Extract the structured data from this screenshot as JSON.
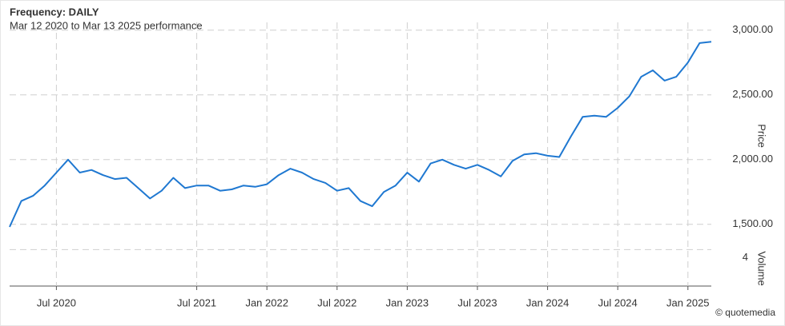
{
  "chart_data": {
    "type": "line",
    "title": "Frequency: DAILY",
    "subtitle": "Mar 12 2020 to Mar 13 2025 performance",
    "y_label": "Price",
    "credit": "© quotemedia",
    "grid": true,
    "x": [
      "2020-03",
      "2020-04",
      "2020-05",
      "2020-06",
      "2020-07",
      "2020-08",
      "2020-09",
      "2020-10",
      "2020-11",
      "2020-12",
      "2021-01",
      "2021-02",
      "2021-03",
      "2021-04",
      "2021-05",
      "2021-06",
      "2021-07",
      "2021-08",
      "2021-09",
      "2021-10",
      "2021-11",
      "2021-12",
      "2022-01",
      "2022-02",
      "2022-03",
      "2022-04",
      "2022-05",
      "2022-06",
      "2022-07",
      "2022-08",
      "2022-09",
      "2022-10",
      "2022-11",
      "2022-12",
      "2023-01",
      "2023-02",
      "2023-03",
      "2023-04",
      "2023-05",
      "2023-06",
      "2023-07",
      "2023-08",
      "2023-09",
      "2023-10",
      "2023-11",
      "2023-12",
      "2024-01",
      "2024-02",
      "2024-03",
      "2024-04",
      "2024-05",
      "2024-06",
      "2024-07",
      "2024-08",
      "2024-09",
      "2024-10",
      "2024-11",
      "2024-12",
      "2025-01",
      "2025-02",
      "2025-03"
    ],
    "series": [
      {
        "name": "Price",
        "color": "#1f78d1",
        "values": [
          1480,
          1680,
          1720,
          1800,
          1900,
          2000,
          1900,
          1920,
          1880,
          1850,
          1860,
          1780,
          1700,
          1760,
          1860,
          1780,
          1800,
          1800,
          1760,
          1770,
          1800,
          1790,
          1810,
          1880,
          1930,
          1900,
          1850,
          1820,
          1760,
          1780,
          1680,
          1640,
          1750,
          1800,
          1900,
          1830,
          1970,
          2000,
          1960,
          1930,
          1960,
          1920,
          1870,
          1990,
          2040,
          2050,
          2030,
          2020,
          2180,
          2330,
          2340,
          2330,
          2400,
          2490,
          2640,
          2690,
          2610,
          2640,
          2750,
          2900,
          2910
        ]
      }
    ],
    "xlim": [
      "2020-03",
      "2025-03"
    ],
    "xticks": [
      {
        "value": "2020-07",
        "label": "Jul 2020"
      },
      {
        "value": "2021-07",
        "label": "Jul 2021"
      },
      {
        "value": "2022-01",
        "label": "Jan 2022"
      },
      {
        "value": "2022-07",
        "label": "Jul 2022"
      },
      {
        "value": "2023-01",
        "label": "Jan 2023"
      },
      {
        "value": "2023-07",
        "label": "Jul 2023"
      },
      {
        "value": "2024-01",
        "label": "Jan 2024"
      },
      {
        "value": "2024-07",
        "label": "Jul 2024"
      },
      {
        "value": "2025-01",
        "label": "Jan 2025"
      }
    ],
    "ylim": [
      1400,
      3060
    ],
    "yticks": [
      {
        "value": 1500,
        "label": "1,500.00"
      },
      {
        "value": 2000,
        "label": "2,000.00"
      },
      {
        "value": 2500,
        "label": "2,500.00"
      },
      {
        "value": 3000,
        "label": "3,000.00"
      }
    ],
    "volume": {
      "label": "Volume",
      "ylim": [
        0,
        6
      ],
      "yticks": [
        4
      ]
    }
  }
}
